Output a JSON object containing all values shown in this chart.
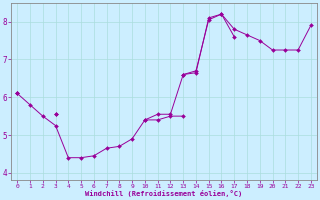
{
  "xlabel": "Windchill (Refroidissement éolien,°C)",
  "bg_color": "#cceeff",
  "line_color": "#990099",
  "grid_color": "#aadddd",
  "hours": [
    0,
    1,
    2,
    3,
    4,
    5,
    6,
    7,
    8,
    9,
    10,
    11,
    12,
    13,
    14,
    15,
    16,
    17,
    18,
    19,
    20,
    21,
    22,
    23
  ],
  "line1": [
    6.1,
    5.8,
    5.5,
    5.25,
    4.4,
    4.4,
    4.45,
    4.65,
    4.7,
    4.9,
    5.4,
    5.4,
    5.5,
    5.5,
    null,
    null,
    null,
    null,
    null,
    null,
    null,
    null,
    null,
    null
  ],
  "line2": [
    6.1,
    null,
    null,
    5.55,
    null,
    null,
    null,
    null,
    null,
    null,
    5.4,
    5.55,
    5.55,
    6.6,
    6.65,
    8.1,
    8.2,
    7.6,
    null,
    null,
    null,
    null,
    null,
    null
  ],
  "line3": [
    6.1,
    null,
    null,
    5.55,
    null,
    null,
    null,
    null,
    null,
    null,
    null,
    null,
    null,
    6.6,
    6.7,
    8.05,
    8.2,
    7.8,
    7.65,
    7.5,
    7.25,
    7.25,
    7.25,
    7.9
  ],
  "ylim": [
    3.8,
    8.5
  ],
  "xlim": [
    -0.5,
    23.5
  ],
  "yticks": [
    4,
    5,
    6,
    7,
    8
  ],
  "xticks": [
    0,
    1,
    2,
    3,
    4,
    5,
    6,
    7,
    8,
    9,
    10,
    11,
    12,
    13,
    14,
    15,
    16,
    17,
    18,
    19,
    20,
    21,
    22,
    23
  ]
}
